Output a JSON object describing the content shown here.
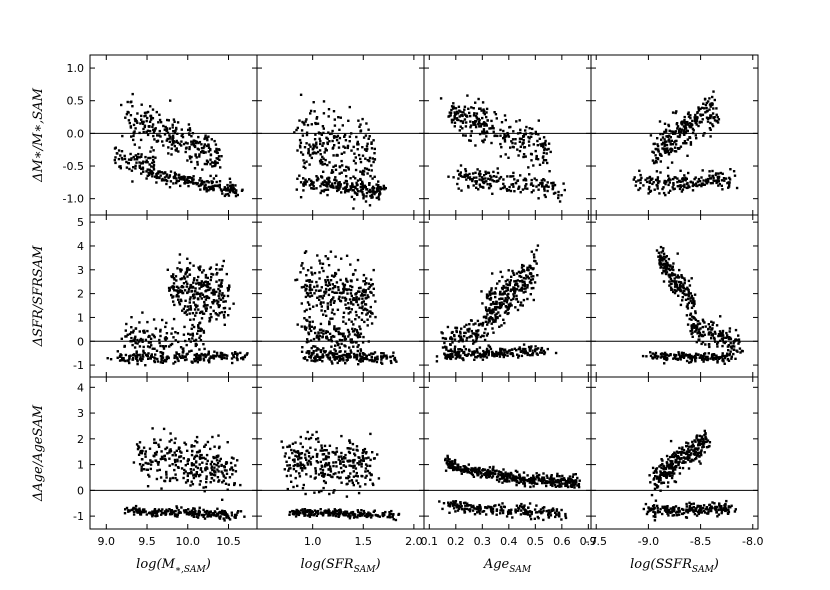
{
  "chart_data": {
    "type": "scatter",
    "grid": false,
    "columns": [
      {
        "xlabel": "log(M∗,SAM)",
        "xlabel_main": "log(",
        "xlabel_symbol": "M",
        "xlabel_sub": "∗,SAM",
        "xlabel_close": ")",
        "xlim": [
          8.8,
          10.85
        ],
        "xticks": [
          9.0,
          9.5,
          10.0,
          10.5
        ],
        "xtick_labels": [
          "9.0",
          "9.5",
          "10.0",
          "10.5"
        ]
      },
      {
        "xlabel": "log(SFRSAM)",
        "xlabel_main": "log(",
        "xlabel_symbol": "SFR",
        "xlabel_sub": "SAM",
        "xlabel_close": ")",
        "xlim": [
          0.45,
          2.1
        ],
        "xticks": [
          1.0,
          1.5,
          2.0
        ],
        "xtick_labels": [
          "1.0",
          "1.5",
          "2.0"
        ]
      },
      {
        "xlabel": "AgeSAM",
        "xlabel_main": "",
        "xlabel_symbol": "Age",
        "xlabel_sub": "SAM",
        "xlabel_close": "",
        "xlim": [
          0.08,
          0.71
        ],
        "xticks": [
          0.1,
          0.2,
          0.3,
          0.4,
          0.5,
          0.6,
          0.7
        ],
        "xtick_labels": [
          "0.1",
          "0.2",
          "0.3",
          "0.4",
          "0.5",
          "0.6",
          "0.7"
        ]
      },
      {
        "xlabel": "log(SSFRSAM)",
        "xlabel_main": "log(",
        "xlabel_symbol": "SSFR",
        "xlabel_sub": "SAM",
        "xlabel_close": ")",
        "xlim": [
          -9.55,
          -7.95
        ],
        "xticks": [
          -9.5,
          -9.0,
          -8.5,
          -8.0
        ],
        "xtick_labels": [
          "-9.5",
          "-9.0",
          "-8.5",
          "-8.0"
        ]
      }
    ],
    "rows": [
      {
        "ylabel": "ΔM∗/M∗,SAM",
        "ylim": [
          -1.25,
          1.2
        ],
        "yticks": [
          -1.0,
          -0.5,
          0.0,
          0.5,
          1.0
        ],
        "ytick_labels": [
          "-1.0",
          "-0.5",
          "0.0",
          "0.5",
          "1.0"
        ]
      },
      {
        "ylabel": "ΔSFR/SFRSAM",
        "ylim": [
          -1.5,
          5.3
        ],
        "yticks": [
          -1,
          0,
          1,
          2,
          3,
          4,
          5
        ],
        "ytick_labels": [
          "-1",
          "0",
          "1",
          "2",
          "3",
          "4",
          "5"
        ]
      },
      {
        "ylabel": "ΔAge/AgeSAM",
        "ylim": [
          -1.5,
          4.4
        ],
        "yticks": [
          -1,
          0,
          1,
          2,
          3,
          4
        ],
        "ytick_labels": [
          "-1",
          "0",
          "1",
          "2",
          "3",
          "4"
        ]
      }
    ],
    "reference_line_y": 0,
    "panels": [
      {
        "row": 0,
        "col": 0,
        "clusters": [
          {
            "n": 260,
            "x": [
              9.25,
              10.4
            ],
            "y": [
              0.3,
              -0.4
            ],
            "spread": 0.14
          },
          {
            "n": 200,
            "x": [
              9.5,
              10.6
            ],
            "y": [
              -0.6,
              -0.88
            ],
            "spread": 0.05
          },
          {
            "n": 80,
            "x": [
              9.1,
              9.6
            ],
            "y": [
              -0.35,
              -0.45
            ],
            "spread": 0.12
          }
        ]
      },
      {
        "row": 0,
        "col": 1,
        "clusters": [
          {
            "n": 260,
            "x": [
              0.85,
              1.6
            ],
            "y": [
              -0.1,
              -0.4
            ],
            "spread": 0.3
          },
          {
            "n": 200,
            "x": [
              0.9,
              1.7
            ],
            "y": [
              -0.75,
              -0.88
            ],
            "spread": 0.06
          }
        ]
      },
      {
        "row": 0,
        "col": 2,
        "clusters": [
          {
            "n": 260,
            "x": [
              0.18,
              0.55
            ],
            "y": [
              0.3,
              -0.3
            ],
            "spread": 0.15
          },
          {
            "n": 180,
            "x": [
              0.2,
              0.6
            ],
            "y": [
              -0.65,
              -0.85
            ],
            "spread": 0.08
          }
        ]
      },
      {
        "row": 0,
        "col": 3,
        "clusters": [
          {
            "n": 260,
            "x": [
              -8.95,
              -8.35
            ],
            "y": [
              -0.3,
              0.4
            ],
            "spread": 0.15
          },
          {
            "n": 180,
            "x": [
              -9.1,
              -8.2
            ],
            "y": [
              -0.8,
              -0.7
            ],
            "spread": 0.08
          }
        ]
      },
      {
        "row": 1,
        "col": 0,
        "clusters": [
          {
            "n": 280,
            "x": [
              9.8,
              10.5
            ],
            "y": [
              2.3,
              1.9
            ],
            "spread": 0.6
          },
          {
            "n": 200,
            "x": [
              9.1,
              10.7
            ],
            "y": [
              -0.7,
              -0.6
            ],
            "spread": 0.12
          },
          {
            "n": 140,
            "x": [
              9.2,
              10.2
            ],
            "y": [
              0.1,
              0.3
            ],
            "spread": 0.35
          }
        ]
      },
      {
        "row": 1,
        "col": 1,
        "clusters": [
          {
            "n": 280,
            "x": [
              0.9,
              1.6
            ],
            "y": [
              2.4,
              1.6
            ],
            "spread": 0.6
          },
          {
            "n": 200,
            "x": [
              0.9,
              1.8
            ],
            "y": [
              -0.6,
              -0.7
            ],
            "spread": 0.12
          },
          {
            "n": 140,
            "x": [
              0.9,
              1.5
            ],
            "y": [
              0.4,
              0.2
            ],
            "spread": 0.35
          }
        ]
      },
      {
        "row": 1,
        "col": 2,
        "clusters": [
          {
            "n": 280,
            "x": [
              0.3,
              0.5
            ],
            "y": [
              0.9,
              3.0
            ],
            "spread": 0.5
          },
          {
            "n": 200,
            "x": [
              0.15,
              0.55
            ],
            "y": [
              -0.6,
              -0.4
            ],
            "spread": 0.12
          },
          {
            "n": 100,
            "x": [
              0.15,
              0.3
            ],
            "y": [
              0.0,
              0.4
            ],
            "spread": 0.3
          }
        ]
      },
      {
        "row": 1,
        "col": 3,
        "clusters": [
          {
            "n": 200,
            "x": [
              -8.9,
              -8.55
            ],
            "y": [
              3.6,
              1.3
            ],
            "spread": 0.35
          },
          {
            "n": 140,
            "x": [
              -8.6,
              -8.1
            ],
            "y": [
              0.6,
              -0.2
            ],
            "spread": 0.25
          },
          {
            "n": 160,
            "x": [
              -9.0,
              -8.2
            ],
            "y": [
              -0.6,
              -0.7
            ],
            "spread": 0.1
          }
        ]
      },
      {
        "row": 2,
        "col": 0,
        "clusters": [
          {
            "n": 300,
            "x": [
              9.4,
              10.6
            ],
            "y": [
              1.3,
              0.8
            ],
            "spread": 0.45
          },
          {
            "n": 220,
            "x": [
              9.3,
              10.6
            ],
            "y": [
              -0.8,
              -0.95
            ],
            "spread": 0.08
          }
        ]
      },
      {
        "row": 2,
        "col": 1,
        "clusters": [
          {
            "n": 300,
            "x": [
              0.75,
              1.6
            ],
            "y": [
              1.1,
              0.9
            ],
            "spread": 0.5
          },
          {
            "n": 220,
            "x": [
              0.8,
              1.8
            ],
            "y": [
              -0.85,
              -0.95
            ],
            "spread": 0.08
          }
        ]
      },
      {
        "row": 2,
        "col": 2,
        "curve": {
          "n": 420,
          "x": [
            0.16,
            0.67
          ],
          "a": 0.46,
          "b": 3.5,
          "c": -0.25,
          "spread": 0.12
        },
        "clusters": [
          {
            "n": 200,
            "x": [
              0.15,
              0.6
            ],
            "y": [
              -0.6,
              -0.95
            ],
            "spread": 0.12
          }
        ]
      },
      {
        "row": 2,
        "col": 3,
        "clusters": [
          {
            "n": 280,
            "x": [
              -8.95,
              -8.45
            ],
            "y": [
              0.4,
              1.9
            ],
            "spread": 0.25
          },
          {
            "n": 200,
            "x": [
              -9.0,
              -8.2
            ],
            "y": [
              -0.8,
              -0.7
            ],
            "spread": 0.12
          }
        ]
      }
    ]
  }
}
